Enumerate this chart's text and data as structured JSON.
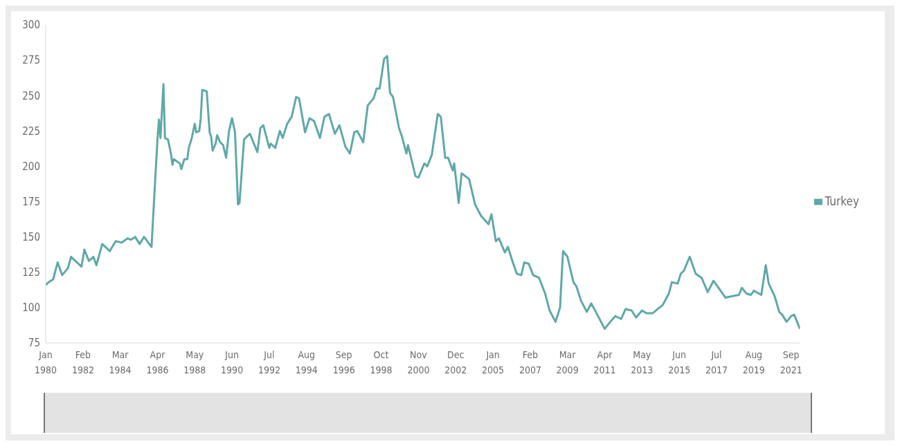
{
  "chart_data": {
    "type": "line",
    "legend": "right",
    "grid": false,
    "xlim": [
      "1980-01",
      "2022-03"
    ],
    "xticks": [
      {
        "value": "1980-01",
        "label": "Jan 1980"
      },
      {
        "value": "1982-02",
        "label": "Feb 1982"
      },
      {
        "value": "1984-03",
        "label": "Mar 1984"
      },
      {
        "value": "1986-04",
        "label": "Apr 1986"
      },
      {
        "value": "1988-05",
        "label": "May 1988"
      },
      {
        "value": "1990-06",
        "label": "Jun 1990"
      },
      {
        "value": "1992-07",
        "label": "Jul 1992"
      },
      {
        "value": "1994-08",
        "label": "Aug 1994"
      },
      {
        "value": "1996-09",
        "label": "Sep 1996"
      },
      {
        "value": "1998-10",
        "label": "Oct 1998"
      },
      {
        "value": "2000-11",
        "label": "Nov 2000"
      },
      {
        "value": "2002-12",
        "label": "Dec 2002"
      },
      {
        "value": "2005-01",
        "label": "Jan 2005"
      },
      {
        "value": "2007-02",
        "label": "Feb 2007"
      },
      {
        "value": "2009-03",
        "label": "Mar 2009"
      },
      {
        "value": "2011-04",
        "label": "Apr 2011"
      },
      {
        "value": "2013-05",
        "label": "May 2013"
      },
      {
        "value": "2015-06",
        "label": "Jun 2015"
      },
      {
        "value": "2017-07",
        "label": "Jul 2017"
      },
      {
        "value": "2019-08",
        "label": "Aug 2019"
      },
      {
        "value": "2021-09",
        "label": "Sep 2021"
      }
    ],
    "ylim": [
      75,
      300
    ],
    "yticks": [
      75,
      100,
      125,
      150,
      175,
      200,
      225,
      250,
      275,
      300
    ],
    "series": [
      {
        "name": "Turkey",
        "color": "#5fa8a8",
        "x": [
          "1980-01",
          "1980-03",
          "1980-06",
          "1980-09",
          "1980-12",
          "1981-04",
          "1981-06",
          "1982-01",
          "1982-03",
          "1982-06",
          "1982-09",
          "1982-11",
          "1983-03",
          "1983-08",
          "1983-12",
          "1984-04",
          "1984-08",
          "1984-10",
          "1985-01",
          "1985-04",
          "1985-07",
          "1985-12",
          "1986-01",
          "1986-04",
          "1986-05",
          "1986-06",
          "1986-08",
          "1986-09",
          "1986-11",
          "1987-01",
          "1987-02",
          "1987-03",
          "1987-07",
          "1987-08",
          "1987-10",
          "1987-12",
          "1988-01",
          "1988-03",
          "1988-05",
          "1988-06",
          "1988-08",
          "1988-09",
          "1988-10",
          "1989-01",
          "1989-03",
          "1989-04",
          "1989-05",
          "1989-07",
          "1989-08",
          "1989-10",
          "1989-12",
          "1990-02",
          "1990-04",
          "1990-06",
          "1990-08",
          "1990-10",
          "1990-11",
          "1991-02",
          "1991-04",
          "1991-06",
          "1991-11",
          "1992-01",
          "1992-03",
          "1992-07",
          "1992-08",
          "1992-11",
          "1993-02",
          "1993-04",
          "1993-07",
          "1993-10",
          "1994-01",
          "1994-03",
          "1994-07",
          "1994-10",
          "1995-01",
          "1995-05",
          "1995-08",
          "1995-11",
          "1996-03",
          "1996-06",
          "1996-10",
          "1997-01",
          "1997-04",
          "1997-06",
          "1997-10",
          "1998-01",
          "1998-05",
          "1998-07",
          "1998-09",
          "1998-12",
          "1999-02",
          "1999-04",
          "1999-06",
          "1999-10",
          "1999-12",
          "2000-03",
          "2000-04",
          "2000-07",
          "2000-09",
          "2000-11",
          "2001-01",
          "2001-03",
          "2001-05",
          "2001-08",
          "2001-12",
          "2002-02",
          "2002-05",
          "2002-07",
          "2002-10",
          "2002-11",
          "2003-02",
          "2003-04",
          "2003-09",
          "2004-01",
          "2004-05",
          "2004-10",
          "2004-12",
          "2005-03",
          "2005-05",
          "2005-09",
          "2005-11",
          "2006-02",
          "2006-05",
          "2006-08",
          "2006-10",
          "2007-01",
          "2007-04",
          "2007-08",
          "2007-12",
          "2008-03",
          "2008-07",
          "2008-10",
          "2008-12",
          "2009-03",
          "2009-07",
          "2009-09",
          "2009-12",
          "2010-04",
          "2010-07",
          "2010-11",
          "2011-04",
          "2011-07",
          "2011-11",
          "2012-03",
          "2012-06",
          "2012-10",
          "2013-01",
          "2013-05",
          "2013-08",
          "2013-12",
          "2014-07",
          "2014-11",
          "2015-01",
          "2015-05",
          "2015-07",
          "2015-09",
          "2016-01",
          "2016-05",
          "2016-09",
          "2017-01",
          "2017-05",
          "2017-09",
          "2018-01",
          "2018-05",
          "2018-10",
          "2018-12",
          "2019-03",
          "2019-06",
          "2019-08",
          "2020-01",
          "2020-04",
          "2020-06",
          "2020-10",
          "2021-01",
          "2021-03",
          "2021-06",
          "2021-09",
          "2021-11",
          "2022-03"
        ],
        "values": [
          116,
          118,
          120,
          132,
          123,
          128,
          136,
          129,
          141,
          133,
          136,
          130,
          145,
          140,
          147,
          146,
          149,
          148,
          150,
          145,
          150,
          143,
          163,
          219,
          233,
          220,
          258,
          220,
          219,
          209,
          201,
          205,
          202,
          198,
          205,
          205,
          213,
          220,
          230,
          224,
          225,
          234,
          254,
          253,
          224,
          221,
          211,
          216,
          222,
          217,
          215,
          206,
          225,
          234,
          224,
          173,
          174,
          219,
          221,
          223,
          210,
          227,
          229,
          213,
          216,
          213,
          225,
          220,
          230,
          235,
          249,
          248,
          224,
          234,
          232,
          220,
          235,
          237,
          223,
          229,
          214,
          209,
          224,
          225,
          217,
          243,
          248,
          255,
          255,
          276,
          278,
          252,
          249,
          227,
          221,
          209,
          215,
          202,
          193,
          192,
          197,
          202,
          200,
          208,
          237,
          235,
          206,
          206,
          197,
          202,
          174,
          195,
          191,
          173,
          165,
          159,
          166,
          147,
          149,
          139,
          143,
          133,
          124,
          123,
          132,
          131,
          123,
          121,
          110,
          98,
          90,
          100,
          140,
          136,
          118,
          115,
          105,
          97,
          103,
          95,
          85,
          89,
          94,
          92,
          99,
          98,
          93,
          98,
          96,
          96,
          102,
          110,
          118,
          117,
          124,
          126,
          136,
          124,
          121,
          111,
          119,
          113,
          107,
          108,
          109,
          114,
          110,
          109,
          112,
          109,
          130,
          117,
          108,
          97,
          95,
          90,
          94,
          95,
          85
        ]
      }
    ]
  }
}
